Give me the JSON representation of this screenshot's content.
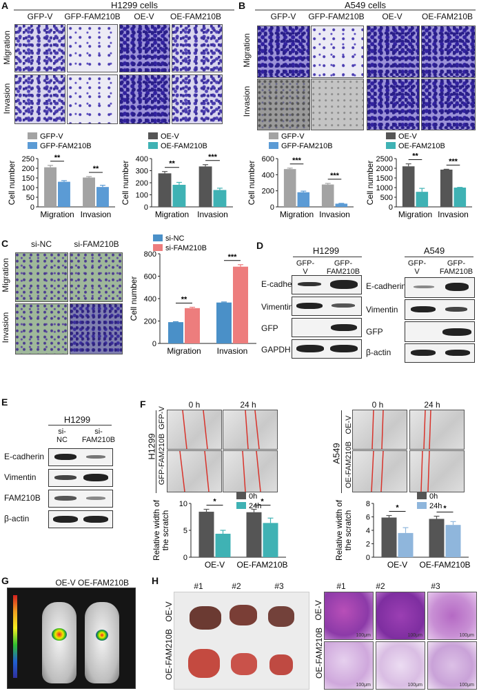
{
  "panels": {
    "A": {
      "label": "A",
      "title": "H1299  cells",
      "cols": [
        "GFP-V",
        "GFP-FAM210B",
        "OE-V",
        "OE-FAM210B"
      ],
      "rows": [
        "Migration",
        "Invasion"
      ]
    },
    "B": {
      "label": "B",
      "title": "A549 cells",
      "cols": [
        "GFP-V",
        "GFP-FAM210B",
        "OE-V",
        "OE-FAM210B"
      ],
      "rows": [
        "Migration",
        "Invasion"
      ]
    },
    "C": {
      "label": "C",
      "cols": [
        "si-NC",
        "si-FAM210B"
      ],
      "rows": [
        "Migration",
        "Invasion"
      ]
    },
    "D": {
      "label": "D",
      "left": {
        "cell": "H1299",
        "lanes": [
          "GFP-\nV",
          "GFP-\nFAM210B"
        ],
        "rows": [
          "E-cadherin",
          "Vimentin",
          "GFP",
          "GAPDH"
        ]
      },
      "right": {
        "cell": "A549",
        "lanes": [
          "GFP-\nV",
          "GFP-\nFAM210B"
        ],
        "rows": [
          "E-cadherin",
          "Vimentin",
          "GFP",
          "β-actin"
        ]
      }
    },
    "E": {
      "label": "E",
      "cell": "H1299",
      "lanes": [
        "si-\nNC",
        "si-\nFAM210B"
      ],
      "rows": [
        "E-cadherin",
        "Vimentin",
        "FAM210B",
        "β-actin"
      ]
    },
    "F": {
      "label": "F",
      "left": {
        "cell": "H1299",
        "times": [
          "0 h",
          "24 h"
        ],
        "rows": [
          "GFP-V",
          "GFP-FAM210B"
        ]
      },
      "right": {
        "cell": "A549",
        "times": [
          "0 h",
          "24 h"
        ],
        "rows": [
          "OE-V",
          "OE-FAM210B"
        ]
      }
    },
    "G": {
      "label": "G",
      "cols": [
        "OE-V",
        "OE-FAM210B"
      ]
    },
    "H": {
      "label": "H",
      "nums": [
        "#1",
        "#2",
        "#3"
      ],
      "rows": [
        "OE-V",
        "OE-FAM210B"
      ],
      "scale": "100μm"
    }
  },
  "colors": {
    "gray": "#a3a3a3",
    "blue": "#5b9bd5",
    "dark": "#555555",
    "teal": "#3fb2b4",
    "red": "#ed7d7d",
    "lightblue": "#8fb6dc",
    "midblue": "#4a90c8"
  },
  "chart_data": [
    {
      "id": "A1",
      "type": "bar",
      "ylabel": "Cell number",
      "categories": [
        "Migration",
        "Invasion"
      ],
      "ylim": [
        0,
        250
      ],
      "yticks": [
        "0",
        "50",
        "100",
        "150",
        "200",
        "250"
      ],
      "series": [
        {
          "name": "GFP-V",
          "values": [
            205,
            152
          ],
          "errors": [
            10,
            5
          ]
        },
        {
          "name": "GFP-FAM210B",
          "values": [
            130,
            103
          ],
          "errors": [
            6,
            9
          ]
        }
      ],
      "signif": [
        "**",
        "**"
      ]
    },
    {
      "id": "A2",
      "type": "bar",
      "ylabel": "Cell number",
      "categories": [
        "Migration",
        "Invasion"
      ],
      "ylim": [
        0,
        400
      ],
      "yticks": [
        "0",
        "100",
        "200",
        "300",
        "400"
      ],
      "series": [
        {
          "name": "OE-V",
          "values": [
            278,
            335
          ],
          "errors": [
            15,
            15
          ]
        },
        {
          "name": "OE-FAM210B",
          "values": [
            183,
            140
          ],
          "errors": [
            20,
            15
          ]
        }
      ],
      "signif": [
        "**",
        "***"
      ]
    },
    {
      "id": "B1",
      "type": "bar",
      "ylabel": "Cell number",
      "categories": [
        "Migration",
        "Invasion"
      ],
      "ylim": [
        0,
        600
      ],
      "yticks": [
        "0",
        "200",
        "400",
        "600"
      ],
      "series": [
        {
          "name": "GFP-V",
          "values": [
            470,
            278
          ],
          "errors": [
            12,
            14
          ]
        },
        {
          "name": "GFP-FAM210B",
          "values": [
            182,
            40
          ],
          "errors": [
            14,
            4
          ]
        }
      ],
      "signif": [
        "***",
        "***"
      ]
    },
    {
      "id": "B2",
      "type": "bar",
      "ylabel": "Cell number",
      "categories": [
        "Migration",
        "Invasion"
      ],
      "ylim": [
        0,
        2500
      ],
      "yticks": [
        "0",
        "500",
        "1000",
        "1500",
        "2000",
        "2500"
      ],
      "series": [
        {
          "name": "OE-V",
          "values": [
            2100,
            1930
          ],
          "errors": [
            130,
            20
          ]
        },
        {
          "name": "OE-FAM210B",
          "values": [
            780,
            1000
          ],
          "errors": [
            180,
            10
          ]
        }
      ],
      "signif": [
        "**",
        "***"
      ]
    },
    {
      "id": "C1",
      "type": "bar",
      "ylabel": "Cell number",
      "categories": [
        "Migration",
        "Invasion"
      ],
      "ylim": [
        0,
        800
      ],
      "yticks": [
        "0",
        "200",
        "400",
        "600",
        "800"
      ],
      "series": [
        {
          "name": "si-NC",
          "values": [
            190,
            365
          ],
          "errors": [
            4,
            5
          ]
        },
        {
          "name": "si-FAM210B",
          "values": [
            315,
            685
          ],
          "errors": [
            8,
            18
          ]
        }
      ],
      "signif": [
        "**",
        "***"
      ]
    },
    {
      "id": "F1",
      "type": "bar",
      "ylabel": "Relative width of\nthe scratch",
      "categories": [
        "OE-V",
        "OE-FAM210B"
      ],
      "ylim": [
        0,
        11
      ],
      "yticks": [
        "0",
        "5",
        "10"
      ],
      "series": [
        {
          "name": "0h",
          "values": [
            9.3,
            9.2
          ],
          "errors": [
            0.5,
            0.6
          ]
        },
        {
          "name": "24h",
          "values": [
            4.8,
            7.0
          ],
          "errors": [
            0.7,
            1.0
          ]
        }
      ],
      "signif": [
        "*",
        "*"
      ]
    },
    {
      "id": "F2",
      "type": "bar",
      "ylabel": "Relative width of\nthe scratch",
      "categories": [
        "OE-V",
        "OE-FAM210B"
      ],
      "ylim": [
        0,
        8
      ],
      "yticks": [
        "0",
        "2",
        "4",
        "6",
        "8"
      ],
      "series": [
        {
          "name": "0h",
          "values": [
            5.9,
            5.7
          ],
          "errors": [
            0.3,
            0.4
          ]
        },
        {
          "name": "24h",
          "values": [
            3.6,
            4.8
          ],
          "errors": [
            0.8,
            0.5
          ]
        }
      ],
      "signif": [
        "*",
        "*"
      ]
    }
  ]
}
